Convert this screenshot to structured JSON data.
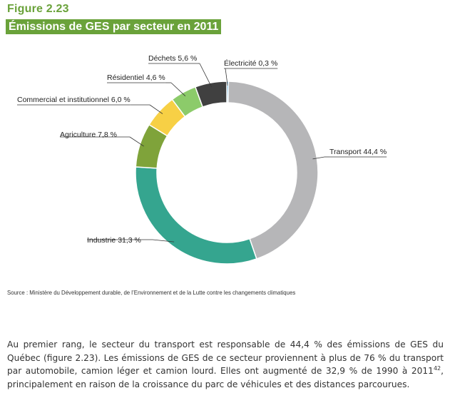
{
  "figure": {
    "label": "Figure 2.23",
    "title": "Émissions de GES par secteur en 2011",
    "accent_color": "#6aa23a"
  },
  "chart_data": {
    "type": "pie",
    "donut": true,
    "title": "Émissions de GES par secteur en 2011",
    "unit": "%",
    "slices": [
      {
        "label": "Électricité 0,3 %",
        "category": "Électricité",
        "value": 0.3,
        "color": "#1f8fd0"
      },
      {
        "label": "Transport 44,4 %",
        "category": "Transport",
        "value": 44.4,
        "color": "#b6b6b8"
      },
      {
        "label": "Industrie 31,3 %",
        "category": "Industrie",
        "value": 31.3,
        "color": "#35a58f"
      },
      {
        "label": "Agriculture 7,8 %",
        "category": "Agriculture",
        "value": 7.8,
        "color": "#7fa33a"
      },
      {
        "label": "Commercial et institutionnel 6,0 %",
        "category": "Commercial et institutionnel",
        "value": 6.0,
        "color": "#f7d045"
      },
      {
        "label": "Résidentiel 4,6 %",
        "category": "Résidentiel",
        "value": 4.6,
        "color": "#8ccb6a"
      },
      {
        "label": "Déchets 5,6 %",
        "category": "Déchets",
        "value": 5.6,
        "color": "#404040"
      }
    ]
  },
  "source": "Source : Ministère du Développement durable, de l’Environnement et de la Lutte contre les changements climatiques",
  "paragraph": {
    "text": "Au premier rang, le secteur du transport est responsable de 44,4 % des émissions de GES du Québec (figure 2.23). Les émissions de GES de ce secteur proviennent à plus de 76 % du transport par automobile, camion léger et camion lourd. Elles ont augmenté de 32,9 % de 1990 à 2011",
    "footnote": "42",
    "text_end": ", principalement en raison de la croissance du parc de véhicules et des distances parcourues."
  }
}
